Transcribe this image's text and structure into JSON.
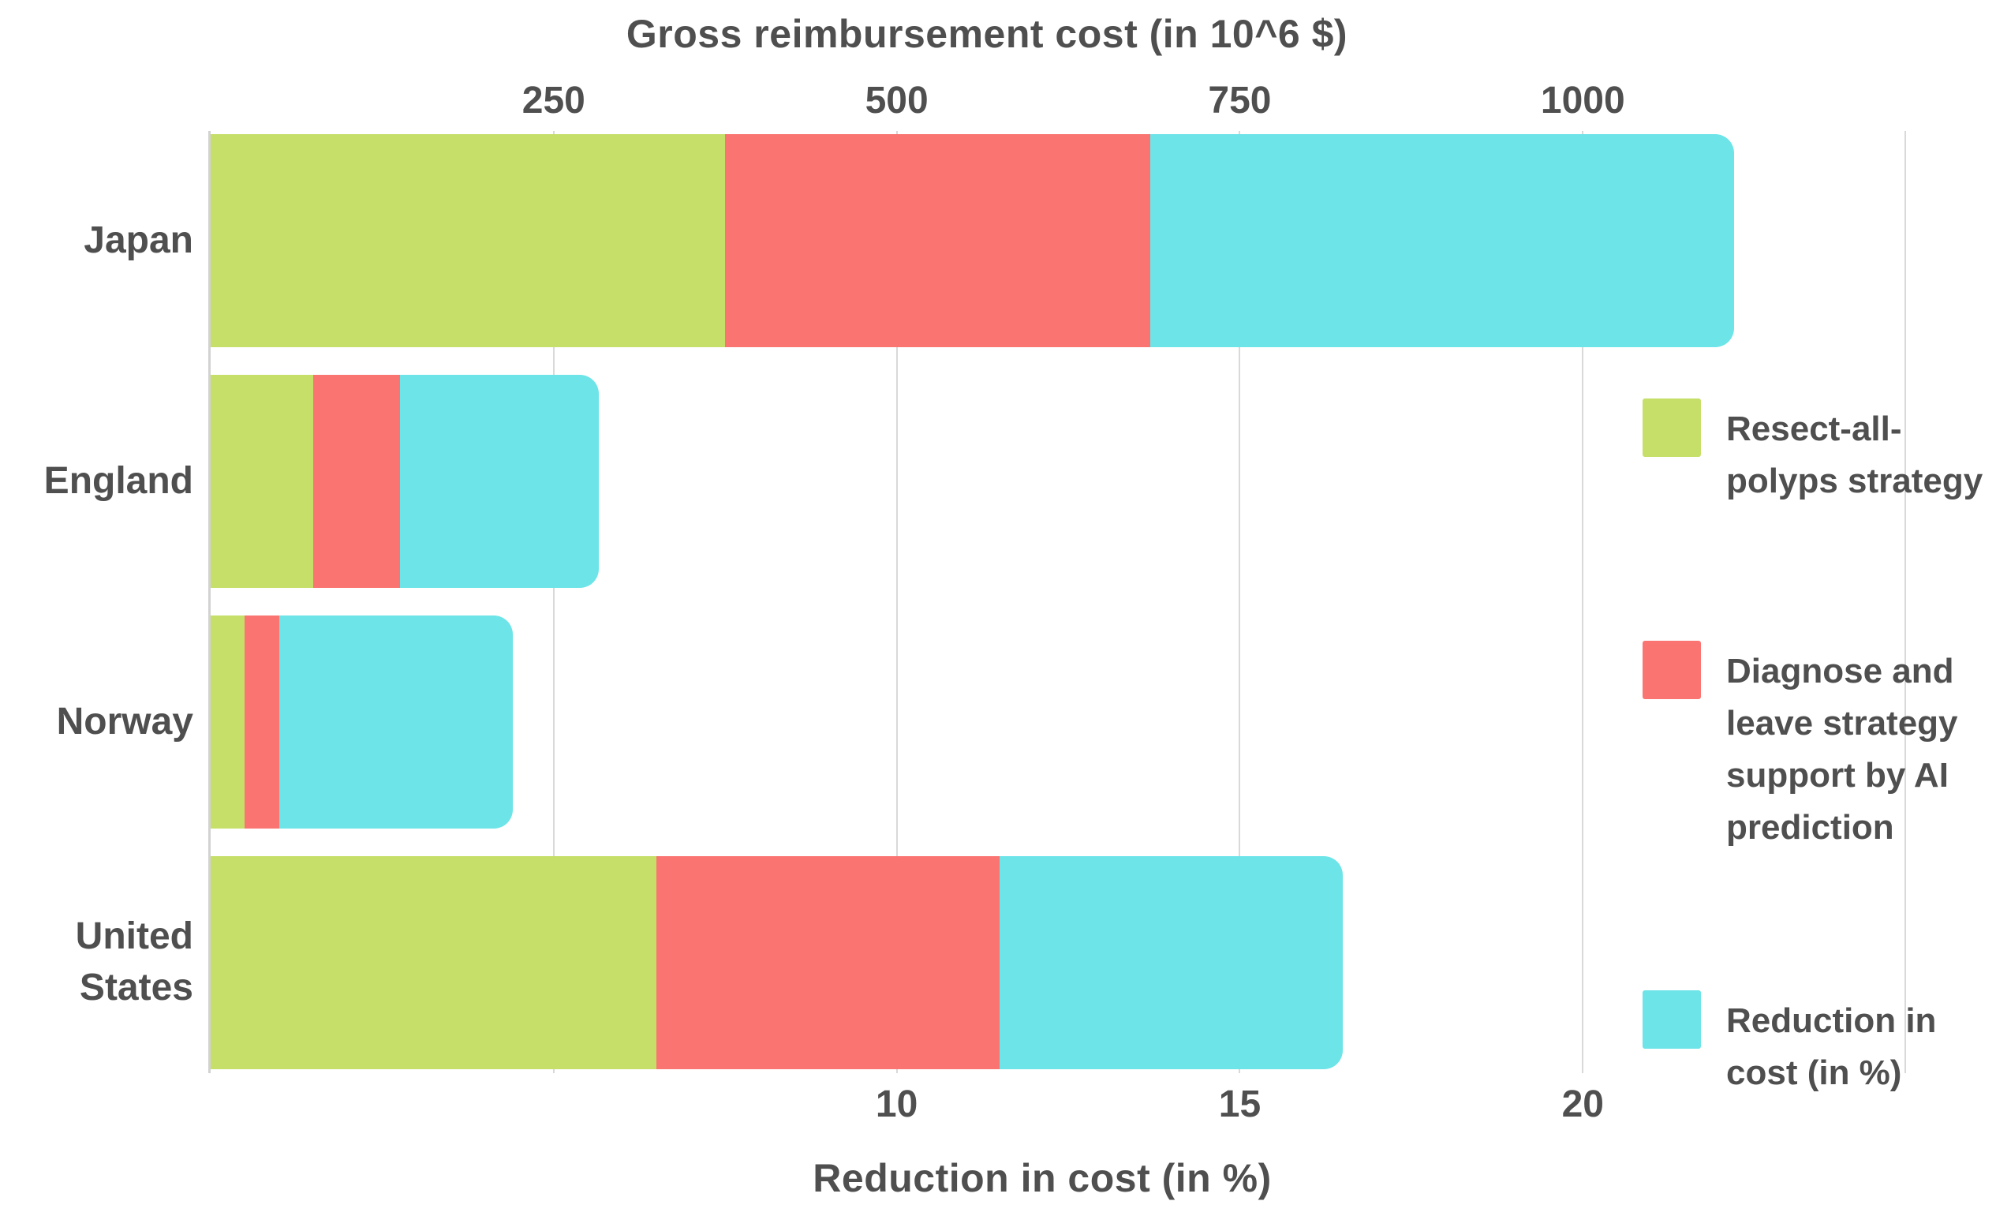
{
  "chart_data": {
    "type": "bar",
    "orientation": "horizontal",
    "stacked": true,
    "categories": [
      "Japan",
      "England",
      "Norway",
      "United States"
    ],
    "series": [
      {
        "name": "Resect-all-polyps strategy",
        "color": "#c5df68",
        "axis": "top",
        "unit": "10^6 $",
        "values": [
          375,
          75,
          25,
          325
        ]
      },
      {
        "name": "Diagnose and leave strategy support by AI prediction",
        "color": "#fa7571",
        "axis": "top",
        "unit": "10^6 $",
        "values": [
          310,
          63,
          25,
          250
        ]
      },
      {
        "name": "Reduction in cost (in %)",
        "color": "#6ce4e8",
        "axis": "bottom",
        "unit": "%",
        "values": [
          8.5,
          2.9,
          3.4,
          5.0
        ]
      }
    ],
    "top_axis": {
      "label": "Gross reimbursement cost (in 10^6 $)",
      "ticks": [
        250,
        500,
        750,
        1000
      ],
      "range": [
        0,
        1235
      ]
    },
    "bottom_axis": {
      "label": "Reduction in cost (in %)",
      "ticks": [
        10,
        15,
        20
      ],
      "range": [
        0,
        24.7
      ],
      "top_units_per_percent": 50
    },
    "grid": true,
    "legend_position": "right",
    "colors": {
      "text": "#4f4f4f",
      "grid": "#d9d9d9",
      "background": "#ffffff"
    }
  }
}
